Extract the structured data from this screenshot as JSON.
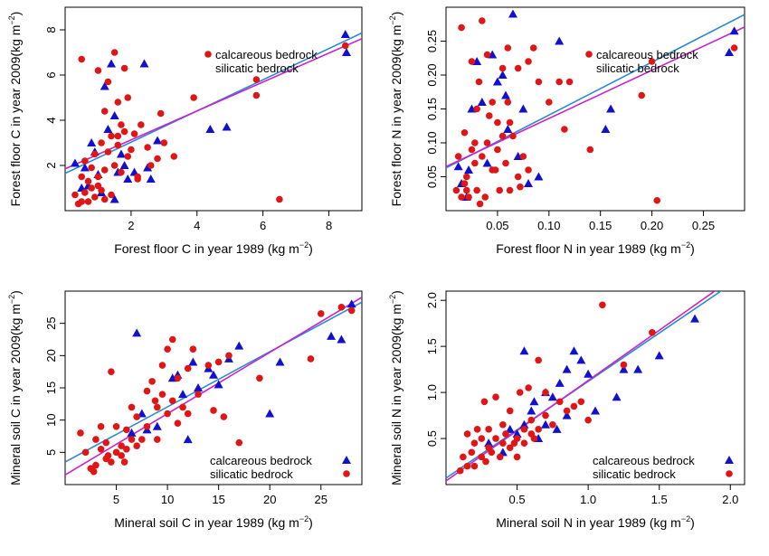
{
  "styles": {
    "calcareous_color": "#1010d0",
    "silicatic_color": "#e01515",
    "calcareous_line_color": "#2a8ad4",
    "silicatic_line_color": "#cc22cc"
  },
  "chart_data": [
    {
      "type": "scatter",
      "xlabel": "Forest floor C in year 1989",
      "ylabel": "Forest floor C in year 2009",
      "unit": "(kg m",
      "unit_exp": "−2",
      "unit_close": ")",
      "xlim": [
        0,
        9
      ],
      "ylim": [
        0,
        9
      ],
      "xticks": [
        "2",
        "4",
        "6",
        "8"
      ],
      "yticks": [
        "2",
        "4",
        "6",
        "8"
      ],
      "legend": {
        "position": "top-right",
        "entries": [
          "calcareous bedrock",
          "silicatic bedrock"
        ]
      },
      "series": [
        {
          "name": "calcareous bedrock",
          "marker": "triangle",
          "x": [
            0.3,
            0.5,
            0.6,
            0.7,
            0.9,
            1.0,
            1.1,
            1.2,
            1.3,
            1.4,
            1.5,
            1.6,
            1.7,
            1.8,
            1.9,
            2.1,
            2.4,
            2.5,
            2.6,
            2.8,
            4.4,
            4.9,
            8.5,
            0.8,
            1.5
          ],
          "y": [
            2.1,
            1.0,
            1.9,
            1.1,
            2.6,
            1.6,
            0.8,
            5.5,
            3.6,
            6.5,
            4.2,
            1.7,
            2.5,
            2.0,
            1.4,
            1.7,
            6.5,
            1.9,
            1.4,
            3.1,
            3.6,
            3.7,
            7.8,
            3.0,
            0.5
          ],
          "fit": {
            "slope": 0.69,
            "intercept": 1.65
          }
        },
        {
          "name": "silicatic bedrock",
          "marker": "circle",
          "x": [
            0.3,
            0.4,
            0.5,
            0.5,
            0.6,
            0.6,
            0.7,
            0.7,
            0.8,
            0.8,
            0.9,
            0.9,
            1.0,
            1.0,
            1.1,
            1.1,
            1.2,
            1.2,
            1.3,
            1.3,
            1.4,
            1.4,
            1.5,
            1.5,
            1.6,
            1.6,
            1.7,
            1.7,
            1.8,
            1.8,
            1.9,
            1.9,
            2.0,
            2.1,
            2.2,
            2.3,
            2.5,
            2.6,
            2.8,
            2.9,
            3.0,
            3.3,
            3.9,
            5.8,
            5.8,
            6.5,
            8.5,
            0.5,
            1.0,
            1.2,
            1.6,
            2.2
          ],
          "y": [
            0.7,
            0.3,
            1.5,
            6.7,
            0.8,
            2.2,
            1.3,
            0.4,
            1.9,
            1.0,
            0.6,
            2.5,
            1.5,
            6.2,
            3.0,
            0.9,
            1.8,
            4.4,
            2.6,
            5.7,
            3.3,
            0.7,
            2.0,
            7.0,
            4.8,
            2.9,
            3.8,
            1.7,
            3.5,
            6.3,
            2.4,
            5.0,
            2.7,
            3.4,
            1.5,
            3.8,
            2.8,
            2.0,
            2.3,
            4.3,
            3.0,
            2.4,
            5.0,
            5.8,
            5.1,
            0.5,
            7.3,
            0.4,
            1.1,
            0.5,
            3.3,
            1.4
          ],
          "fit": {
            "slope": 0.64,
            "intercept": 1.85
          }
        }
      ]
    },
    {
      "type": "scatter",
      "xlabel": "Forest floor N in year 1989",
      "ylabel": "Forest floor N in year 2009",
      "unit": "(kg m",
      "unit_exp": "−2",
      "unit_close": ")",
      "xlim": [
        0.0,
        0.29
      ],
      "ylim": [
        0.0,
        0.3
      ],
      "xticks": [
        "0.05",
        "0.10",
        "0.15",
        "0.20",
        "0.25"
      ],
      "yticks": [
        "0.05",
        "0.10",
        "0.15",
        "0.20",
        "0.25"
      ],
      "legend": {
        "position": "top-right",
        "entries": [
          "calcareous bedrock",
          "silicatic bedrock"
        ]
      },
      "series": [
        {
          "name": "calcareous bedrock",
          "marker": "triangle",
          "x": [
            0.012,
            0.015,
            0.02,
            0.022,
            0.025,
            0.03,
            0.035,
            0.04,
            0.045,
            0.05,
            0.055,
            0.058,
            0.06,
            0.065,
            0.07,
            0.075,
            0.08,
            0.09,
            0.11,
            0.155,
            0.16,
            0.28
          ],
          "y": [
            0.065,
            0.04,
            0.02,
            0.06,
            0.15,
            0.22,
            0.16,
            0.07,
            0.23,
            0.19,
            0.2,
            0.17,
            0.12,
            0.29,
            0.08,
            0.15,
            0.04,
            0.05,
            0.25,
            0.12,
            0.15,
            0.265
          ],
          "fit": {
            "slope": 0.78,
            "intercept": 0.063
          }
        },
        {
          "name": "silicatic bedrock",
          "marker": "circle",
          "x": [
            0.01,
            0.012,
            0.015,
            0.015,
            0.018,
            0.02,
            0.02,
            0.022,
            0.025,
            0.025,
            0.028,
            0.03,
            0.03,
            0.032,
            0.035,
            0.035,
            0.038,
            0.04,
            0.04,
            0.042,
            0.045,
            0.045,
            0.05,
            0.05,
            0.052,
            0.055,
            0.055,
            0.058,
            0.06,
            0.06,
            0.062,
            0.065,
            0.07,
            0.07,
            0.075,
            0.08,
            0.08,
            0.085,
            0.09,
            0.1,
            0.11,
            0.115,
            0.12,
            0.14,
            0.19,
            0.2,
            0.205,
            0.28,
            0.018,
            0.028,
            0.033,
            0.048,
            0.062,
            0.072
          ],
          "y": [
            0.03,
            0.08,
            0.27,
            0.02,
            0.115,
            0.05,
            0.03,
            0.02,
            0.09,
            0.22,
            0.07,
            0.03,
            0.15,
            0.19,
            0.28,
            0.08,
            0.02,
            0.1,
            0.23,
            0.14,
            0.06,
            0.16,
            0.13,
            0.09,
            0.03,
            0.11,
            0.21,
            0.07,
            0.24,
            0.16,
            0.13,
            0.11,
            0.21,
            0.05,
            0.08,
            0.22,
            0.06,
            0.24,
            0.19,
            0.16,
            0.19,
            0.12,
            0.19,
            0.09,
            0.17,
            0.22,
            0.015,
            0.24,
            0.04,
            0.1,
            0.01,
            0.06,
            0.03,
            0.035
          ],
          "fit": {
            "slope": 0.71,
            "intercept": 0.065
          }
        }
      ]
    },
    {
      "type": "scatter",
      "xlabel": "Mineral soil C in year 1989",
      "ylabel": "Mineral soil C in year 2009",
      "unit": "(kg m",
      "unit_exp": "−2",
      "unit_close": ")",
      "xlim": [
        0,
        29
      ],
      "ylim": [
        0,
        30
      ],
      "xticks": [
        "5",
        "10",
        "15",
        "20",
        "25"
      ],
      "yticks": [
        "5",
        "10",
        "15",
        "20",
        "25"
      ],
      "legend": {
        "position": "bottom-right",
        "entries": [
          "calcareous bedrock",
          "silicatic bedrock"
        ]
      },
      "series": [
        {
          "name": "calcareous bedrock",
          "marker": "triangle",
          "x": [
            6.5,
            7.0,
            7.5,
            8.0,
            9.0,
            10.5,
            11.0,
            11.5,
            12.0,
            12.5,
            13.0,
            14.0,
            14.5,
            15.0,
            16.0,
            17.0,
            20.0,
            21.0,
            26.0,
            27.0,
            28.0
          ],
          "y": [
            8.0,
            23.5,
            11.0,
            8.5,
            9.0,
            16.5,
            17.0,
            14.0,
            7.0,
            19.0,
            15.0,
            18.0,
            17.0,
            15.5,
            19.5,
            21.5,
            11.0,
            19.0,
            23.0,
            22.5,
            28.0
          ],
          "fit": {
            "slope": 0.855,
            "intercept": 3.5
          }
        },
        {
          "name": "silicatic bedrock",
          "marker": "circle",
          "x": [
            1.5,
            2.0,
            2.5,
            3.0,
            3.0,
            3.5,
            3.5,
            4.0,
            4.0,
            4.5,
            4.5,
            5.0,
            5.0,
            5.5,
            5.5,
            6.0,
            6.0,
            6.5,
            6.5,
            7.0,
            7.0,
            7.5,
            8.0,
            8.0,
            8.5,
            9.0,
            9.0,
            9.5,
            9.5,
            10.0,
            10.0,
            10.5,
            10.5,
            11.0,
            11.0,
            11.5,
            12.0,
            12.0,
            12.5,
            13.0,
            14.0,
            14.5,
            15.0,
            15.5,
            16.0,
            17.0,
            19.0,
            24.0,
            25.0,
            27.0,
            28.0,
            2.8,
            4.2,
            5.8,
            8.8
          ],
          "y": [
            8.0,
            5.0,
            2.5,
            7.0,
            3.0,
            9.0,
            5.5,
            4.0,
            6.5,
            3.5,
            17.5,
            5.0,
            9.0,
            6.0,
            4.5,
            8.5,
            5.5,
            12.0,
            7.0,
            6.0,
            10.5,
            7.0,
            14.5,
            9.0,
            16.0,
            12.0,
            7.0,
            14.0,
            18.5,
            21.0,
            11.0,
            22.5,
            13.0,
            9.5,
            16.5,
            12.0,
            18.0,
            11.0,
            21.0,
            14.0,
            18.5,
            11.5,
            19.0,
            10.5,
            20.0,
            6.5,
            16.5,
            19.5,
            26.5,
            27.5,
            27.0,
            2.0,
            4.5,
            3.5,
            13.0
          ],
          "fit": {
            "slope": 0.95,
            "intercept": 1.5
          }
        }
      ]
    },
    {
      "type": "scatter",
      "xlabel": "Mineral soil N in year 1989",
      "ylabel": "Mineral soil N in year 2009",
      "unit": "(kg m",
      "unit_exp": "−2",
      "unit_close": ")",
      "xlim": [
        0.0,
        2.1
      ],
      "ylim": [
        0.0,
        2.1
      ],
      "xticks": [
        "0.5",
        "1.0",
        "1.5",
        "2.0"
      ],
      "yticks": [
        "0.5",
        "1.0",
        "1.5",
        "2.0"
      ],
      "legend": {
        "position": "bottom-right",
        "entries": [
          "calcareous bedrock",
          "silicatic bedrock"
        ]
      },
      "series": [
        {
          "name": "calcareous bedrock",
          "marker": "triangle",
          "x": [
            0.3,
            0.4,
            0.45,
            0.5,
            0.55,
            0.55,
            0.6,
            0.65,
            0.7,
            0.7,
            0.75,
            0.8,
            0.85,
            0.85,
            0.9,
            0.95,
            1.0,
            1.05,
            1.2,
            1.25,
            1.35,
            1.5,
            1.75,
            0.62,
            0.78
          ],
          "y": [
            0.45,
            0.35,
            0.6,
            0.55,
            0.65,
            1.45,
            0.8,
            0.5,
            0.65,
            1.0,
            0.95,
            1.1,
            1.25,
            0.75,
            1.45,
            1.35,
            1.2,
            0.8,
            0.95,
            1.25,
            1.25,
            1.4,
            1.8,
            0.9,
            0.6
          ],
          "fit": {
            "slope": 1.05,
            "intercept": 0.07
          }
        },
        {
          "name": "silicatic bedrock",
          "marker": "circle",
          "x": [
            0.1,
            0.12,
            0.15,
            0.15,
            0.18,
            0.2,
            0.2,
            0.22,
            0.25,
            0.25,
            0.28,
            0.3,
            0.3,
            0.32,
            0.35,
            0.35,
            0.38,
            0.4,
            0.4,
            0.42,
            0.45,
            0.45,
            0.5,
            0.5,
            0.52,
            0.55,
            0.55,
            0.6,
            0.6,
            0.65,
            0.65,
            0.7,
            0.7,
            0.75,
            0.8,
            0.85,
            0.9,
            0.95,
            1.0,
            1.1,
            1.25,
            1.45,
            0.58,
            0.27,
            0.48,
            0.62
          ],
          "y": [
            0.15,
            0.3,
            0.55,
            0.2,
            0.35,
            0.45,
            0.2,
            0.6,
            0.3,
            0.5,
            0.25,
            0.4,
            0.6,
            0.35,
            0.95,
            0.5,
            0.3,
            0.65,
            0.45,
            0.55,
            0.4,
            0.8,
            0.5,
            0.3,
            1.0,
            0.6,
            0.45,
            0.7,
            0.55,
            1.35,
            0.6,
            1.0,
            0.75,
            0.65,
            0.9,
            0.8,
            0.85,
            0.9,
            0.7,
            1.95,
            1.3,
            1.65,
            1.05,
            0.9,
            0.45,
            0.5
          ],
          "fit": {
            "slope": 1.09,
            "intercept": 0.04
          }
        }
      ]
    }
  ]
}
